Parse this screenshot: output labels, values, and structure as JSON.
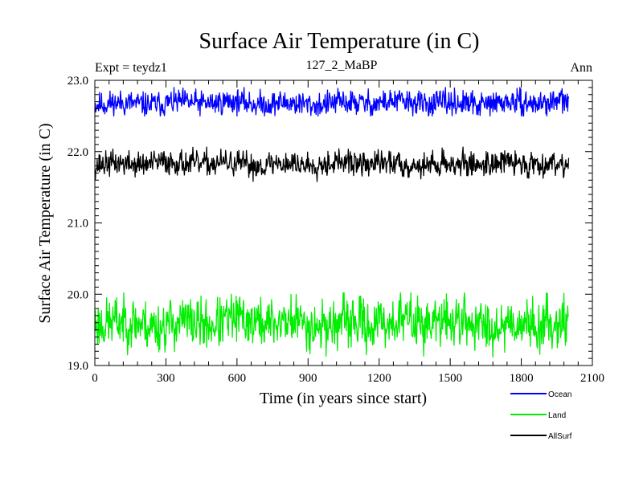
{
  "chart_data": {
    "type": "line",
    "title": "Surface Air Temperature (in C)",
    "subtitle": "127_2_MaBP",
    "expt_label": "Expt = teydz1",
    "season_label": "Ann",
    "xlabel": "Time (in years since start)",
    "ylabel": "Surface Air Temperature (in C)",
    "xlim": [
      0,
      2100
    ],
    "ylim": [
      19.0,
      23.0
    ],
    "x_ticks": [
      0,
      300,
      600,
      900,
      1200,
      1500,
      1800,
      2100
    ],
    "x_tick_labels": [
      "0",
      "300",
      "600",
      "900",
      "1200",
      "1500",
      "1800",
      "2100"
    ],
    "y_ticks": [
      19.0,
      20.0,
      21.0,
      22.0,
      23.0
    ],
    "y_tick_labels": [
      "19.0",
      "20.0",
      "21.0",
      "22.0",
      "23.0"
    ],
    "legend_position": "bottom-right",
    "series": [
      {
        "name": "Ocean",
        "color": "#0000ff",
        "mean": 22.68,
        "amplitude": 0.09,
        "range": [
          22.5,
          22.9
        ],
        "x_start": 0,
        "x_end": 2000,
        "seed": 11
      },
      {
        "name": "Land",
        "color": "#00ee00",
        "mean": 19.6,
        "amplitude": 0.18,
        "range": [
          19.12,
          20.02
        ],
        "x_start": 0,
        "x_end": 2000,
        "seed": 23
      },
      {
        "name": "AllSurf",
        "color": "#000000",
        "mean": 21.83,
        "amplitude": 0.09,
        "range": [
          21.58,
          22.07
        ],
        "x_start": 0,
        "x_end": 2000,
        "seed": 37
      }
    ]
  }
}
